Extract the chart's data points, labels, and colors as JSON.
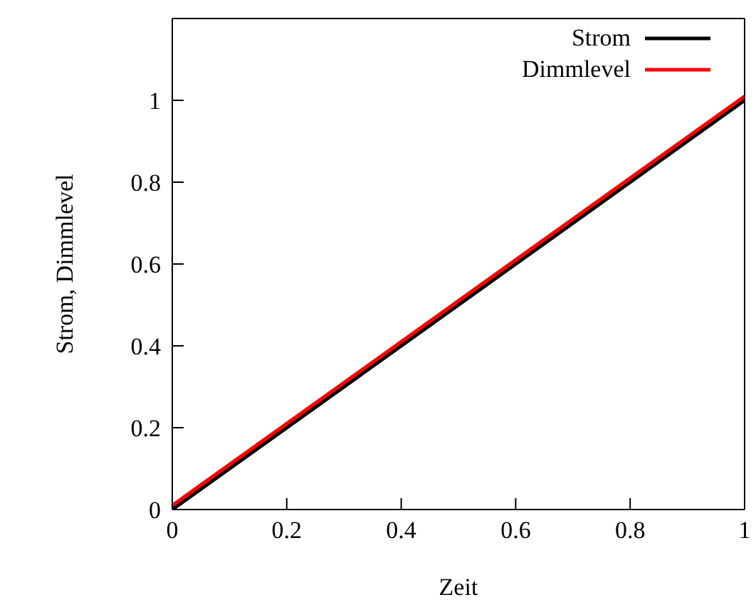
{
  "chart_data": {
    "type": "line",
    "xlabel": "Zeit",
    "ylabel": "Strom, Dimmlevel",
    "x": [
      0,
      1
    ],
    "series": [
      {
        "name": "Strom",
        "color": "#000000",
        "values": [
          0,
          1
        ]
      },
      {
        "name": "Dimmlevel",
        "color": "#ff0000",
        "values": [
          0.01,
          1.01
        ]
      }
    ],
    "xlim": [
      0,
      1
    ],
    "xticks": [
      0,
      0.2,
      0.4,
      0.6,
      0.8,
      1
    ],
    "ylim": [
      0,
      1.2
    ],
    "yticks": [
      0,
      0.2,
      0.4,
      0.6,
      0.8,
      1
    ],
    "legend": "top right",
    "marker": "none",
    "line_style": "solid"
  }
}
